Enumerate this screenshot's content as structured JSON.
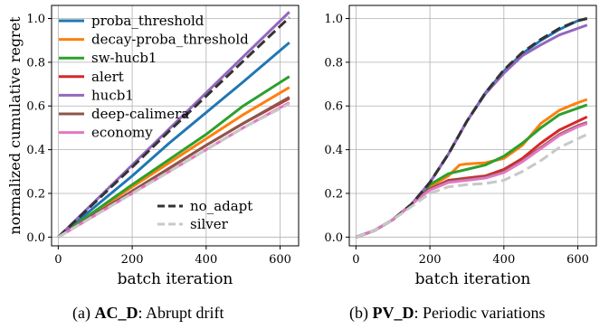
{
  "chart_data": [
    {
      "type": "line",
      "ylabel": "normalized cumulative regret",
      "xlabel": "batch iteration",
      "xlim": [
        -18,
        650
      ],
      "ylim": [
        -0.04,
        1.06
      ],
      "xticks": [
        0,
        200,
        400,
        600
      ],
      "yticks": [
        0.0,
        0.2,
        0.4,
        0.6,
        0.8,
        1.0
      ],
      "grid": true,
      "legend_placement": "top-left",
      "second_legend_placement": "lower-right",
      "series": [
        {
          "name": "proba_threshold",
          "color": "#1f77b4",
          "dash": "solid",
          "x": [
            0,
            100,
            200,
            300,
            400,
            500,
            625
          ],
          "y": [
            0.0,
            0.14,
            0.28,
            0.43,
            0.57,
            0.71,
            0.89
          ]
        },
        {
          "name": "decay-proba_threshold",
          "color": "#ff7f0e",
          "dash": "solid",
          "x": [
            0,
            100,
            200,
            300,
            400,
            500,
            625
          ],
          "y": [
            0.0,
            0.115,
            0.23,
            0.34,
            0.45,
            0.56,
            0.685
          ]
        },
        {
          "name": "sw-hucb1",
          "color": "#2ca02c",
          "dash": "solid",
          "x": [
            0,
            100,
            200,
            300,
            400,
            500,
            625
          ],
          "y": [
            0.0,
            0.12,
            0.24,
            0.355,
            0.47,
            0.6,
            0.735
          ]
        },
        {
          "name": "alert",
          "color": "#d62728",
          "dash": "solid",
          "x": [
            0,
            100,
            200,
            300,
            400,
            500,
            625
          ],
          "y": [
            0.0,
            0.105,
            0.21,
            0.315,
            0.42,
            0.52,
            0.635
          ]
        },
        {
          "name": "hucb1",
          "color": "#9467bd",
          "dash": "solid",
          "x": [
            0,
            100,
            200,
            300,
            400,
            500,
            625
          ],
          "y": [
            0.0,
            0.165,
            0.33,
            0.495,
            0.66,
            0.825,
            1.03
          ]
        },
        {
          "name": "deep-calimera",
          "color": "#8c564b",
          "dash": "solid",
          "x": [
            0,
            100,
            200,
            300,
            400,
            500,
            625
          ],
          "y": [
            0.0,
            0.105,
            0.21,
            0.315,
            0.42,
            0.52,
            0.64
          ]
        },
        {
          "name": "economy",
          "color": "#e377c2",
          "dash": "solid",
          "x": [
            0,
            100,
            200,
            300,
            400,
            500,
            625
          ],
          "y": [
            0.0,
            0.1,
            0.2,
            0.3,
            0.4,
            0.5,
            0.615
          ]
        },
        {
          "name": "no_adapt",
          "color": "#333333",
          "dash": "dashed",
          "x": [
            0,
            100,
            200,
            300,
            400,
            500,
            625
          ],
          "y": [
            0.0,
            0.16,
            0.32,
            0.485,
            0.645,
            0.805,
            1.005
          ]
        },
        {
          "name": "silver",
          "color": "#c8c8c8",
          "dash": "dashed",
          "x": [
            0,
            100,
            200,
            300,
            400,
            500,
            625
          ],
          "y": [
            0.0,
            0.1,
            0.2,
            0.3,
            0.4,
            0.5,
            0.61
          ]
        }
      ]
    },
    {
      "type": "line",
      "ylabel": "",
      "xlabel": "batch iteration",
      "xlim": [
        -18,
        650
      ],
      "ylim": [
        -0.04,
        1.06
      ],
      "xticks": [
        0,
        200,
        400,
        600
      ],
      "yticks": [
        0.0,
        0.2,
        0.4,
        0.6,
        0.8,
        1.0
      ],
      "grid": true,
      "series": [
        {
          "name": "proba_threshold",
          "color": "#1f77b4",
          "dash": "solid",
          "x": [
            0,
            50,
            100,
            150,
            200,
            250,
            300,
            350,
            400,
            450,
            500,
            550,
            600,
            625
          ],
          "y": [
            0.0,
            0.03,
            0.08,
            0.15,
            0.25,
            0.38,
            0.53,
            0.66,
            0.76,
            0.84,
            0.9,
            0.95,
            0.99,
            1.0
          ]
        },
        {
          "name": "decay-proba_threshold",
          "color": "#ff7f0e",
          "dash": "solid",
          "x": [
            0,
            50,
            100,
            150,
            200,
            250,
            280,
            300,
            350,
            400,
            450,
            500,
            550,
            600,
            625
          ],
          "y": [
            0.0,
            0.03,
            0.08,
            0.15,
            0.23,
            0.28,
            0.33,
            0.335,
            0.34,
            0.36,
            0.42,
            0.52,
            0.58,
            0.615,
            0.63
          ]
        },
        {
          "name": "sw-hucb1",
          "color": "#2ca02c",
          "dash": "solid",
          "x": [
            0,
            50,
            100,
            150,
            200,
            250,
            300,
            350,
            400,
            450,
            500,
            550,
            600,
            625
          ],
          "y": [
            0.0,
            0.03,
            0.08,
            0.15,
            0.24,
            0.29,
            0.31,
            0.33,
            0.37,
            0.43,
            0.5,
            0.56,
            0.59,
            0.605
          ]
        },
        {
          "name": "alert",
          "color": "#d62728",
          "dash": "solid",
          "x": [
            0,
            50,
            100,
            150,
            200,
            250,
            300,
            350,
            400,
            450,
            500,
            550,
            600,
            625
          ],
          "y": [
            0.0,
            0.03,
            0.08,
            0.15,
            0.22,
            0.26,
            0.27,
            0.28,
            0.31,
            0.36,
            0.43,
            0.49,
            0.53,
            0.55
          ]
        },
        {
          "name": "hucb1",
          "color": "#9467bd",
          "dash": "solid",
          "x": [
            0,
            50,
            100,
            150,
            200,
            250,
            300,
            350,
            400,
            450,
            500,
            550,
            600,
            625
          ],
          "y": [
            0.0,
            0.03,
            0.08,
            0.15,
            0.25,
            0.38,
            0.53,
            0.655,
            0.75,
            0.83,
            0.88,
            0.925,
            0.955,
            0.97
          ]
        },
        {
          "name": "deep-calimera",
          "color": "#8c564b",
          "dash": "solid",
          "x": [
            0,
            50,
            100,
            150,
            200,
            250,
            300,
            350,
            400,
            450,
            500,
            550,
            600,
            625
          ],
          "y": [
            0.0,
            0.03,
            0.08,
            0.15,
            0.22,
            0.255,
            0.265,
            0.275,
            0.3,
            0.35,
            0.41,
            0.47,
            0.51,
            0.525
          ]
        },
        {
          "name": "economy",
          "color": "#e377c2",
          "dash": "solid",
          "x": [
            0,
            50,
            100,
            150,
            200,
            250,
            300,
            350,
            400,
            450,
            500,
            550,
            600,
            625
          ],
          "y": [
            0.0,
            0.03,
            0.08,
            0.15,
            0.215,
            0.25,
            0.26,
            0.27,
            0.295,
            0.345,
            0.405,
            0.465,
            0.505,
            0.52
          ]
        },
        {
          "name": "no_adapt",
          "color": "#333333",
          "dash": "dashed",
          "x": [
            0,
            50,
            100,
            150,
            200,
            250,
            300,
            350,
            400,
            450,
            500,
            550,
            600,
            625
          ],
          "y": [
            0.0,
            0.03,
            0.08,
            0.15,
            0.25,
            0.38,
            0.53,
            0.66,
            0.765,
            0.845,
            0.905,
            0.955,
            0.99,
            1.0
          ]
        },
        {
          "name": "silver",
          "color": "#c8c8c8",
          "dash": "dashed",
          "x": [
            0,
            50,
            100,
            150,
            200,
            250,
            300,
            350,
            400,
            450,
            500,
            550,
            600,
            625
          ],
          "y": [
            0.0,
            0.03,
            0.08,
            0.14,
            0.2,
            0.23,
            0.24,
            0.245,
            0.26,
            0.3,
            0.35,
            0.41,
            0.45,
            0.47
          ]
        }
      ]
    }
  ],
  "captions": {
    "a_prefix": "(a) ",
    "a_bold": "AC_D",
    "a_rest": ": Abrupt drift",
    "b_prefix": "(b) ",
    "b_bold": "PV_D",
    "b_rest": ": Periodic variations"
  }
}
